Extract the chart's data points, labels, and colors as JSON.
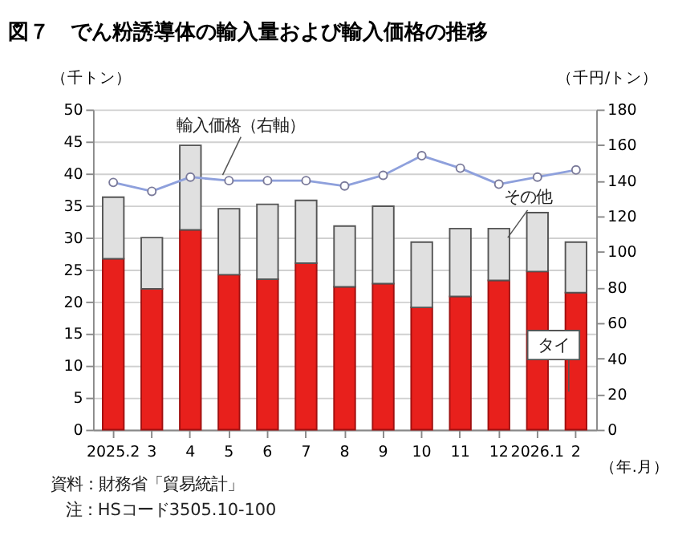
{
  "chart_data": {
    "type": "bar",
    "title": "図７　でん粉誘導体の輸入量および輸入価格の推移",
    "categories": [
      "2025.2",
      "3",
      "4",
      "5",
      "6",
      "7",
      "8",
      "9",
      "10",
      "11",
      "12",
      "2026.1",
      "2"
    ],
    "stacked": true,
    "series": [
      {
        "name": "タイ",
        "color": "#e8201c",
        "values": [
          26.7,
          22.0,
          31.2,
          24.2,
          23.5,
          26.0,
          22.3,
          22.8,
          19.1,
          20.8,
          23.3,
          24.7,
          21.4
        ]
      },
      {
        "name": "その他",
        "color": "#e0e0e0",
        "values": [
          9.6,
          8.0,
          13.2,
          10.3,
          11.7,
          9.8,
          9.5,
          12.1,
          10.2,
          10.6,
          8.1,
          9.2,
          7.9
        ]
      },
      {
        "name": "輸入価格（右軸）",
        "type": "line",
        "axis": "y2",
        "color": "#8ea0dc",
        "marker": "circle",
        "values": [
          139,
          134,
          142,
          140,
          140,
          140,
          137,
          143,
          154,
          147,
          138,
          142,
          146
        ]
      }
    ],
    "ylabel": "（千トン）",
    "y2label": "（千円/トン）",
    "xlabel": "（年.月）",
    "ylim": [
      0,
      50
    ],
    "yticks": [
      0,
      5,
      10,
      15,
      20,
      25,
      30,
      35,
      40,
      45,
      50
    ],
    "y2lim": [
      0,
      180
    ],
    "y2ticks": [
      0,
      20,
      40,
      60,
      80,
      100,
      120,
      140,
      160,
      180
    ],
    "grid": "y",
    "annotations": [
      "資料：財務省「貿易統計」",
      "注：HSコード3505.10-100"
    ]
  }
}
